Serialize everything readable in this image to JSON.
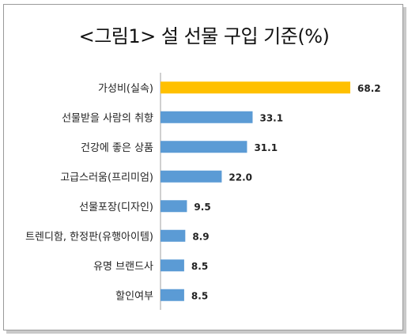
{
  "title": "<그림1> 설 선물 구입 기준(%)",
  "chart_data": {
    "type": "bar",
    "orientation": "horizontal",
    "title": "<그림1> 설 선물 구입 기준(%)",
    "categories": [
      "가성비(실속)",
      "선물받을 사람의 취향",
      "건강에 좋은 상품",
      "고급스러움(프리미엄)",
      "선물포장(디자인)",
      "트렌디함, 한정판(유행아이템)",
      "유명 브랜드사",
      "할인여부"
    ],
    "values": [
      68.2,
      33.1,
      31.1,
      22.0,
      9.5,
      8.9,
      8.5,
      8.5
    ],
    "value_labels": [
      "68.2",
      "33.1",
      "31.1",
      "22.0",
      "9.5",
      "8.9",
      "8.5",
      "8.5"
    ],
    "xlim": [
      0,
      70
    ],
    "grid": false,
    "legend": "none",
    "colors": {
      "highlight": "#FFC000",
      "default": "#5B9BD5",
      "axis": "#a0a0a0",
      "text": "#222222"
    }
  }
}
